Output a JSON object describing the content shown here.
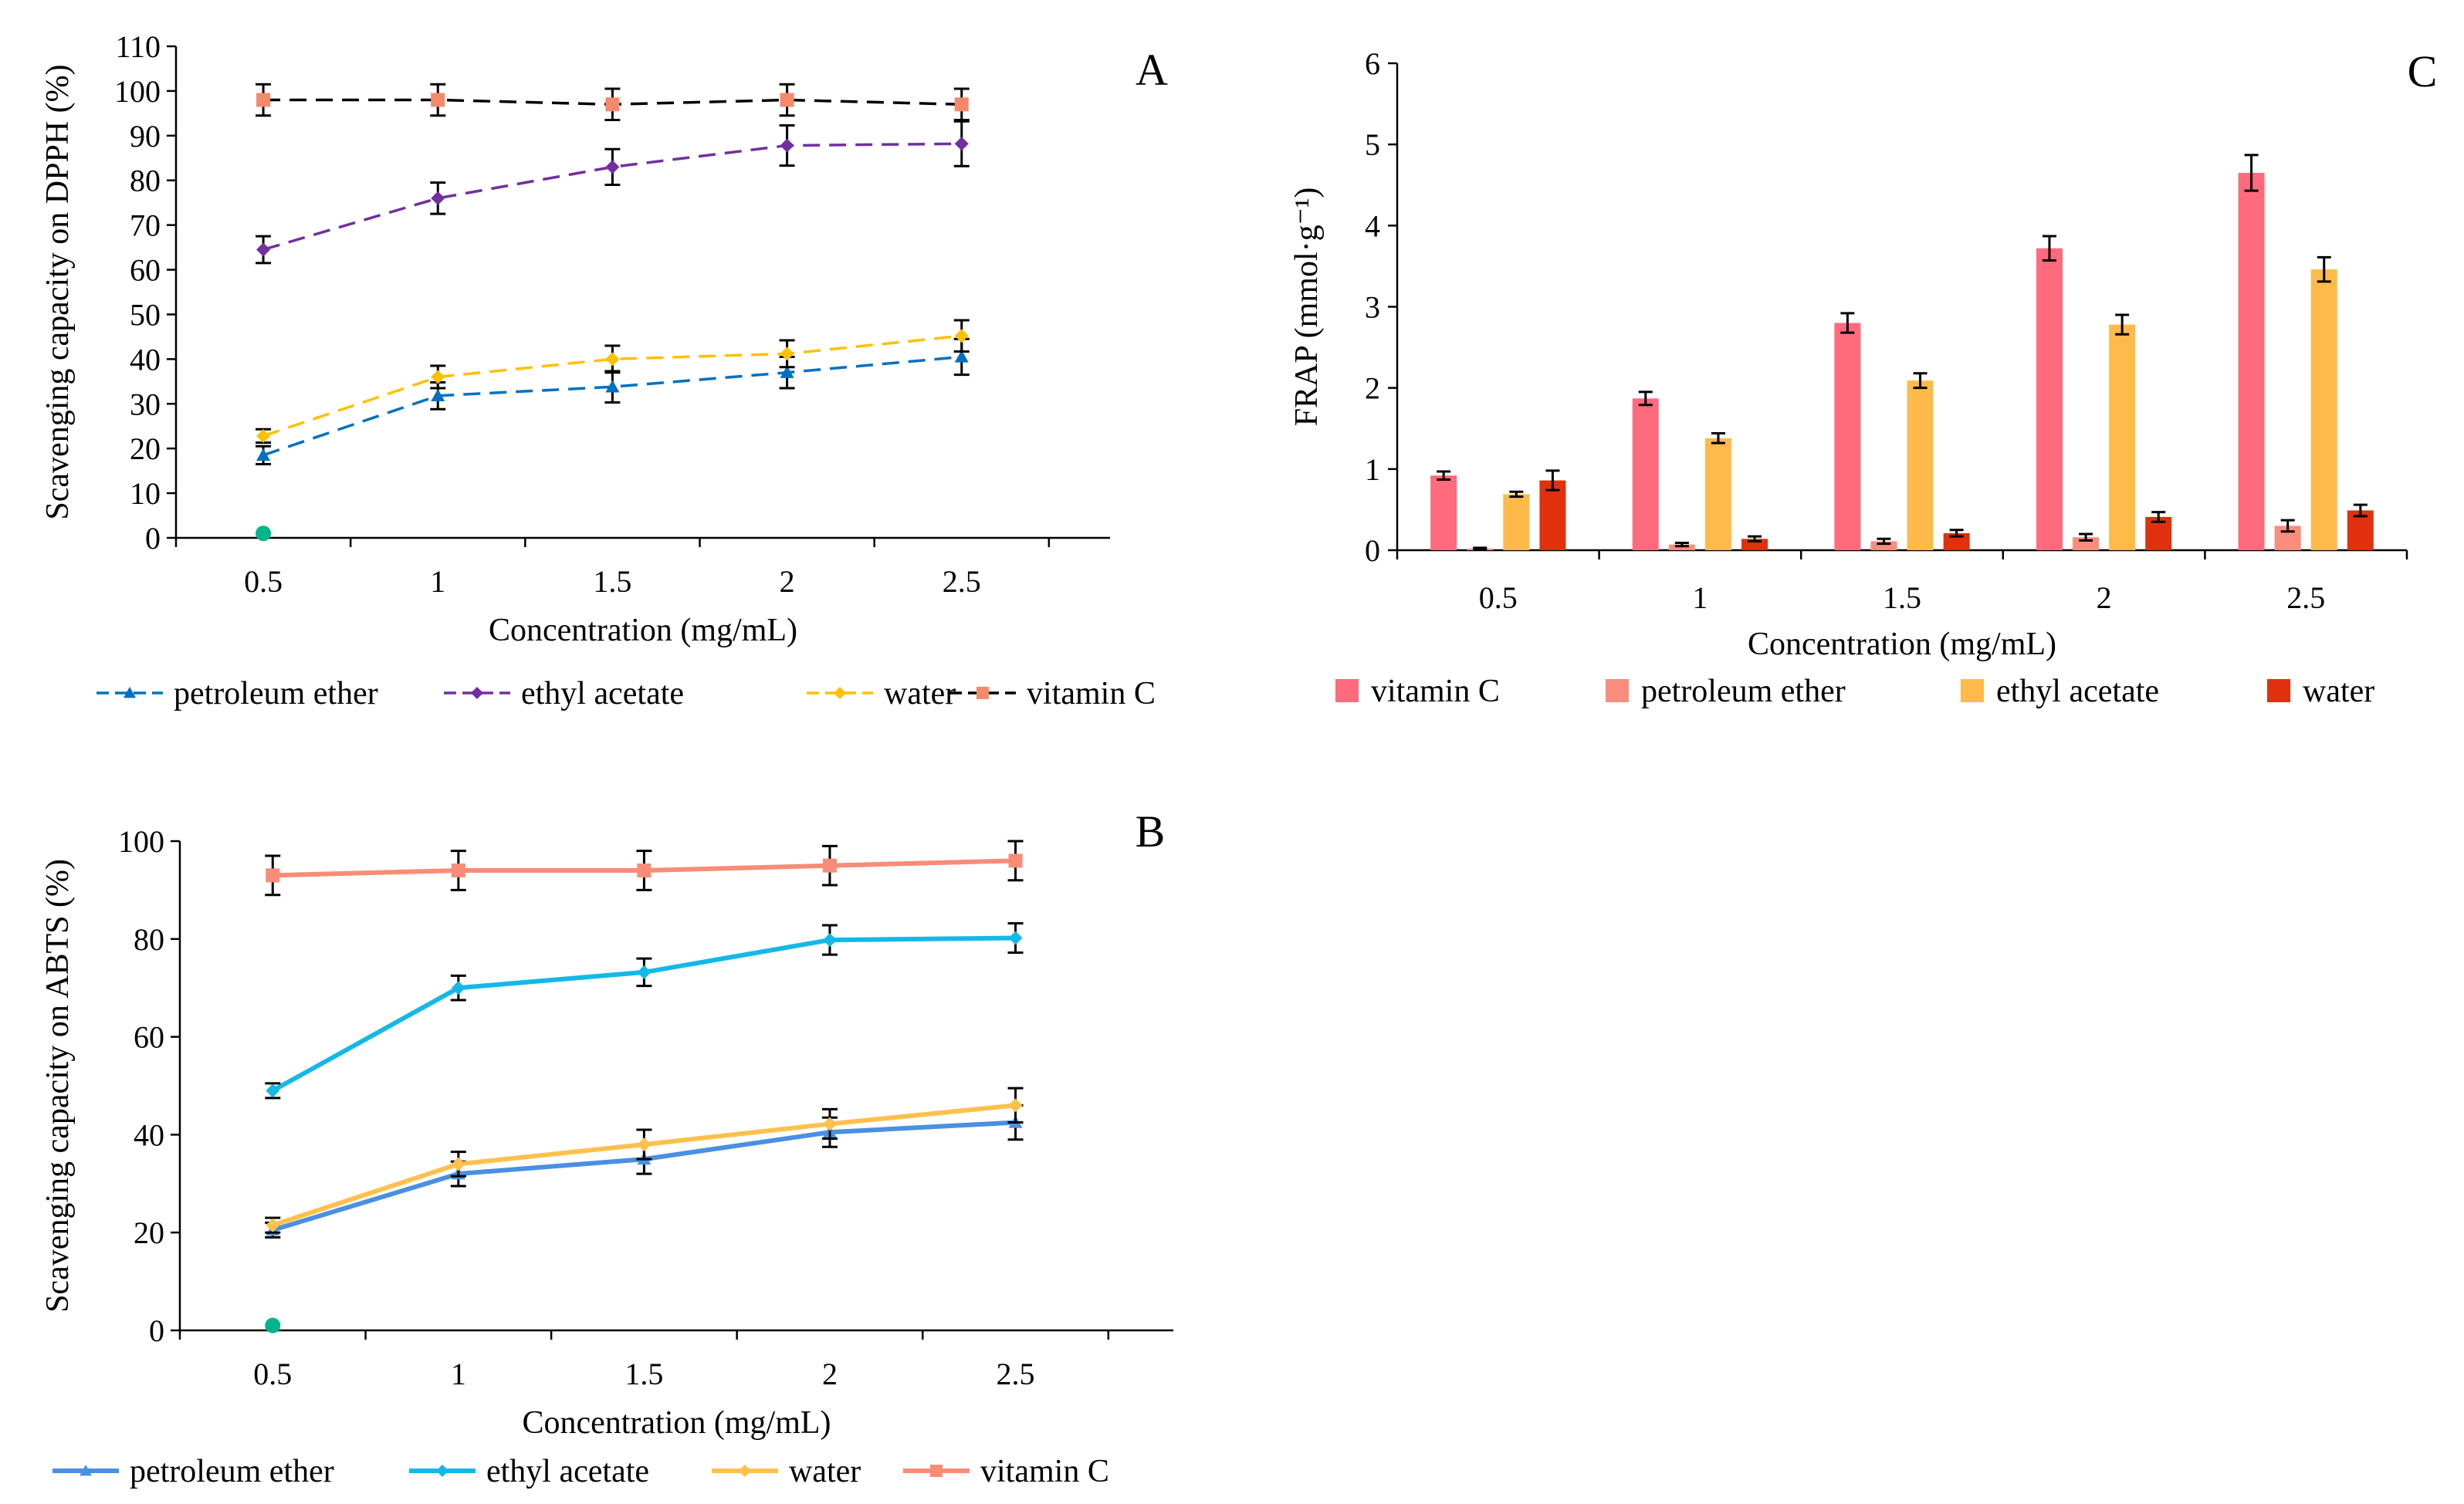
{
  "chart_data": [
    {
      "panel": "A",
      "type": "line",
      "title": "",
      "xlabel": "Concentration (mg/mL)",
      "ylabel": "Scavenging capacity on DPPH (%)",
      "categories": [
        "0.5",
        "1",
        "1.5",
        "2",
        "2.5"
      ],
      "ylim": [
        0,
        110
      ],
      "yticks": [
        "0",
        "10",
        "20",
        "30",
        "40",
        "50",
        "60",
        "70",
        "80",
        "90",
        "100",
        "110"
      ],
      "legend_position": "bottom",
      "series": [
        {
          "name": "petroleum ether",
          "values": [
            18.5,
            31.8,
            33.8,
            37.0,
            40.5
          ],
          "errors": [
            2,
            3,
            3.5,
            3.5,
            4
          ],
          "color": "#0070C0",
          "dash": "dashed",
          "marker": "triangle"
        },
        {
          "name": "ethyl acetate",
          "values": [
            64.5,
            76.0,
            83.0,
            87.8,
            88.2
          ],
          "errors": [
            3,
            3.5,
            4,
            4.5,
            5
          ],
          "color": "#7030A0",
          "dash": "dashed",
          "marker": "diamond"
        },
        {
          "name": "water",
          "values": [
            22.8,
            36.0,
            40.0,
            41.2,
            45.2
          ],
          "errors": [
            1.5,
            2.5,
            3,
            3,
            3.5
          ],
          "color": "#FFC000",
          "dash": "dashed",
          "marker": "diamond"
        },
        {
          "name": "vitamin C",
          "values": [
            98.0,
            98.0,
            97.0,
            98.0,
            97.0
          ],
          "errors": [
            3.5,
            3.5,
            3.5,
            3.5,
            3.5
          ],
          "color": "#000000",
          "dash": "dashed",
          "marker": "square",
          "marker_color": "#F4896B"
        }
      ],
      "extra_points": [
        {
          "x": "0.5",
          "y": 1.0,
          "color": "#00B58A"
        }
      ]
    },
    {
      "panel": "B",
      "type": "line",
      "title": "",
      "xlabel": "Concentration (mg/mL)",
      "ylabel": "Scavenging  capacity on ABTS (%)",
      "categories": [
        "0.5",
        "1",
        "1.5",
        "2",
        "2.5"
      ],
      "ylim": [
        0,
        100
      ],
      "yticks": [
        "0",
        "20",
        "40",
        "60",
        "80",
        "100"
      ],
      "legend_position": "bottom",
      "series": [
        {
          "name": "petroleum ether",
          "values": [
            20.5,
            32.0,
            35.0,
            40.5,
            42.5
          ],
          "errors": [
            1.5,
            2.5,
            3,
            3,
            3.5
          ],
          "color": "#4A90E2",
          "dash": "solid",
          "marker": "triangle"
        },
        {
          "name": "ethyl acetate",
          "values": [
            49.0,
            70.0,
            73.2,
            79.8,
            80.2
          ],
          "errors": [
            1.5,
            2.5,
            2.8,
            3,
            3
          ],
          "color": "#14B8E8",
          "dash": "solid",
          "marker": "diamond"
        },
        {
          "name": "water",
          "values": [
            21.5,
            34.0,
            38.0,
            42.2,
            46.0
          ],
          "errors": [
            1.5,
            2.5,
            3,
            3,
            3.5
          ],
          "color": "#FFC04D",
          "dash": "solid",
          "marker": "diamond"
        },
        {
          "name": "vitamin C",
          "values": [
            93.0,
            94.0,
            94.0,
            95.0,
            96.0
          ],
          "errors": [
            4,
            4,
            4,
            4,
            4
          ],
          "color": "#F78C77",
          "dash": "solid",
          "marker": "square"
        }
      ],
      "extra_points": [
        {
          "x": "0.5",
          "y": 1.0,
          "color": "#00B58A"
        }
      ]
    },
    {
      "panel": "C",
      "type": "bar",
      "title": "",
      "xlabel": "Concentration (mg/mL)",
      "ylabel": "FRAP (mmol·g⁻¹)",
      "categories": [
        "0.5",
        "1",
        "1.5",
        "2",
        "2.5"
      ],
      "ylim": [
        0,
        6
      ],
      "yticks": [
        "0",
        "1",
        "2",
        "3",
        "4",
        "5",
        "6"
      ],
      "legend_position": "bottom",
      "series": [
        {
          "name": "vitamin C",
          "values": [
            0.92,
            1.87,
            2.8,
            3.72,
            4.65
          ],
          "errors": [
            0.05,
            0.08,
            0.12,
            0.15,
            0.22
          ],
          "color": "#FF6A7D"
        },
        {
          "name": "petroleum ether",
          "values": [
            0.02,
            0.07,
            0.11,
            0.16,
            0.3
          ],
          "errors": [
            0.01,
            0.02,
            0.03,
            0.04,
            0.07
          ],
          "color": "#F98D7D"
        },
        {
          "name": "ethyl acetate",
          "values": [
            0.69,
            1.38,
            2.09,
            2.78,
            3.46
          ],
          "errors": [
            0.03,
            0.06,
            0.09,
            0.12,
            0.15
          ],
          "color": "#FFBA4A"
        },
        {
          "name": "water",
          "values": [
            0.86,
            0.14,
            0.21,
            0.41,
            0.49
          ],
          "errors": [
            0.12,
            0.03,
            0.04,
            0.06,
            0.07
          ],
          "color": "#E0300E"
        }
      ]
    }
  ],
  "panel_labels": [
    "A",
    "B",
    "C"
  ]
}
